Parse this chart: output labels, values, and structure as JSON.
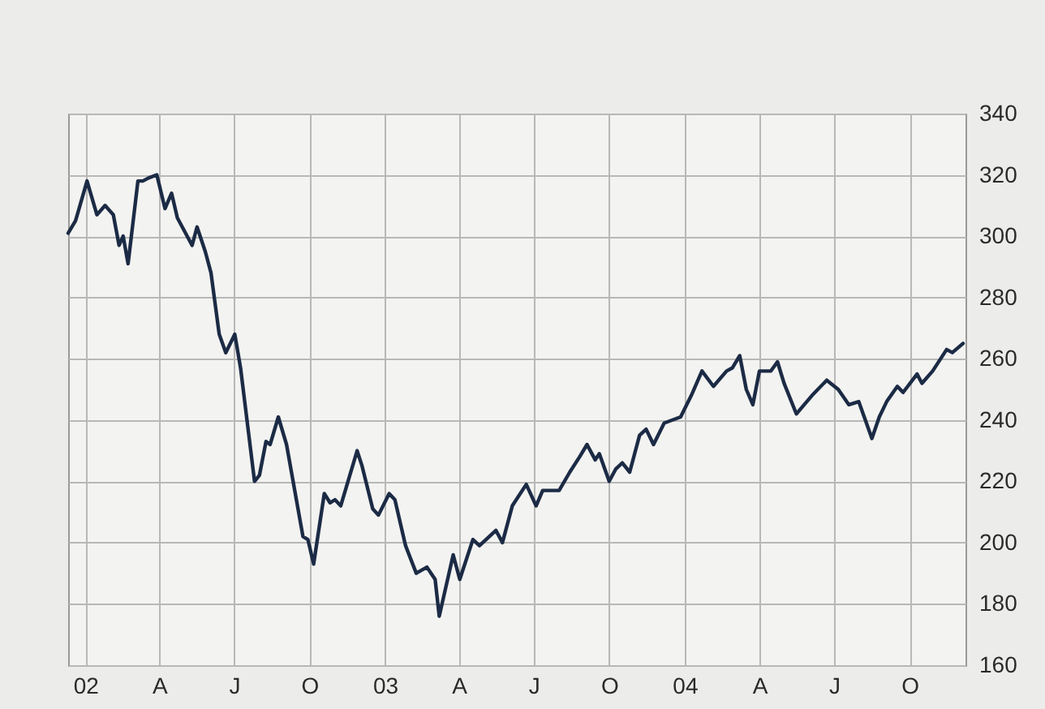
{
  "chart_data": {
    "type": "line",
    "color": "#1c2b45",
    "grid": true,
    "x": [
      "2001-12-11",
      "2001-12-20",
      "2002-01-03",
      "2002-01-15",
      "2002-01-25",
      "2002-02-04",
      "2002-02-11",
      "2002-02-16",
      "2002-02-22",
      "2002-03-06",
      "2002-03-12",
      "2002-03-19",
      "2002-03-29",
      "2002-04-08",
      "2002-04-16",
      "2002-04-23",
      "2002-05-11",
      "2002-05-17",
      "2002-05-27",
      "2002-06-03",
      "2002-06-13",
      "2002-06-21",
      "2002-07-02",
      "2002-07-09",
      "2002-07-26",
      "2002-08-01",
      "2002-08-09",
      "2002-08-14",
      "2002-08-24",
      "2002-09-03",
      "2002-09-23",
      "2002-09-29",
      "2002-10-06",
      "2002-10-19",
      "2002-10-26",
      "2002-11-01",
      "2002-11-08",
      "2002-11-28",
      "2002-12-04",
      "2002-12-17",
      "2002-12-24",
      "2003-01-06",
      "2003-01-13",
      "2003-01-26",
      "2003-02-08",
      "2003-02-21",
      "2003-03-03",
      "2003-03-08",
      "2003-03-25",
      "2003-04-02",
      "2003-04-18",
      "2003-04-26",
      "2003-05-16",
      "2003-05-24",
      "2003-06-05",
      "2003-06-22",
      "2003-07-04",
      "2003-07-12",
      "2003-08-01",
      "2003-08-14",
      "2003-08-26",
      "2003-09-04",
      "2003-09-14",
      "2003-09-19",
      "2003-10-01",
      "2003-10-09",
      "2003-10-17",
      "2003-10-26",
      "2003-11-07",
      "2003-11-15",
      "2003-11-24",
      "2003-12-07",
      "2003-12-27",
      "2004-01-09",
      "2004-01-22",
      "2004-02-05",
      "2004-02-21",
      "2004-02-28",
      "2004-03-08",
      "2004-03-16",
      "2004-03-24",
      "2004-04-01",
      "2004-04-15",
      "2004-04-23",
      "2004-05-01",
      "2004-05-16",
      "2004-06-04",
      "2004-06-22",
      "2004-07-06",
      "2004-07-19",
      "2004-07-31",
      "2004-08-08",
      "2004-08-16",
      "2004-08-25",
      "2004-09-03",
      "2004-09-16",
      "2004-09-23",
      "2004-10-10",
      "2004-10-16",
      "2004-10-29",
      "2004-11-15",
      "2004-11-22",
      "2004-12-05"
    ],
    "values": [
      301,
      305,
      318,
      307,
      310,
      307,
      297,
      300,
      291,
      318,
      318,
      319,
      320,
      309,
      314,
      306,
      297,
      303,
      295,
      288,
      268,
      262,
      268,
      257,
      220,
      222,
      233,
      232,
      241,
      232,
      202,
      201,
      193,
      216,
      213,
      214,
      212,
      230,
      225,
      211,
      209,
      216,
      214,
      199,
      190,
      192,
      188,
      176,
      196,
      188,
      201,
      199,
      204,
      200,
      212,
      219,
      212,
      217,
      217,
      223,
      228,
      232,
      227,
      229,
      220,
      224,
      226,
      223,
      235,
      237,
      232,
      239,
      241,
      248,
      256,
      251,
      256,
      257,
      261,
      250,
      245,
      256,
      256,
      259,
      252,
      242,
      248,
      253,
      250,
      245,
      246,
      240,
      234,
      241,
      246,
      251,
      249,
      255,
      252,
      256,
      263,
      262,
      265
    ],
    "xlim": [
      "2001-12-11",
      "2004-12-08"
    ],
    "xticks": [
      {
        "value": "2002-01-01",
        "label": "02"
      },
      {
        "value": "2002-04-01",
        "label": "A"
      },
      {
        "value": "2002-07-01",
        "label": "J"
      },
      {
        "value": "2002-10-01",
        "label": "O"
      },
      {
        "value": "2003-01-01",
        "label": "03"
      },
      {
        "value": "2003-04-01",
        "label": "A"
      },
      {
        "value": "2003-07-01",
        "label": "J"
      },
      {
        "value": "2003-10-01",
        "label": "O"
      },
      {
        "value": "2004-01-01",
        "label": "04"
      },
      {
        "value": "2004-04-01",
        "label": "A"
      },
      {
        "value": "2004-07-01",
        "label": "J"
      },
      {
        "value": "2004-10-01",
        "label": "O"
      }
    ],
    "ylim": [
      160,
      340
    ],
    "yticks": [
      160,
      180,
      200,
      220,
      240,
      260,
      280,
      300,
      320,
      340
    ]
  }
}
